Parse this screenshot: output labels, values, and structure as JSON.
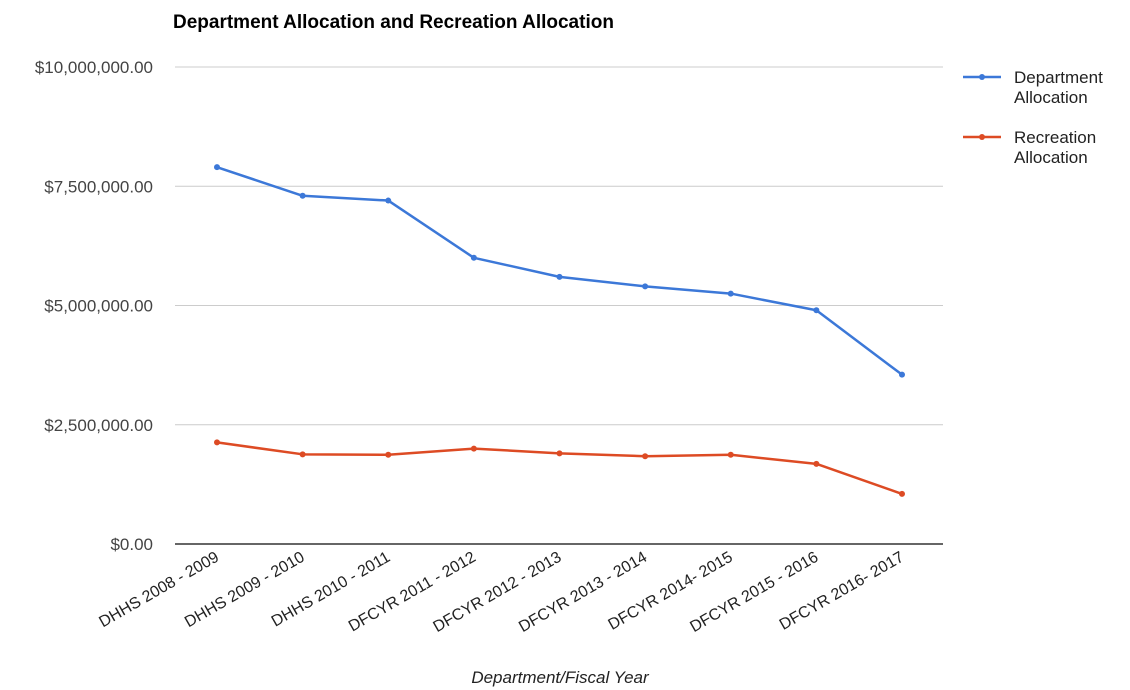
{
  "chart_data": {
    "type": "line",
    "title": "Department Allocation and Recreation Allocation",
    "xlabel": "Department/Fiscal Year",
    "ylabel": "",
    "ylim": [
      0,
      10000000
    ],
    "yticks": [
      "$0.00",
      "$2,500,000.00",
      "$5,000,000.00",
      "$7,500,000.00",
      "$10,000,000.00"
    ],
    "ytick_values": [
      0,
      2500000,
      5000000,
      7500000,
      10000000
    ],
    "grid": true,
    "legend_position": "right",
    "categories": [
      "DHHS 2008 - 2009",
      "DHHS 2009 - 2010",
      "DHHS 2010 - 2011",
      "DFCYR 2011 - 2012",
      "DFCYR 2012 - 2013",
      "DFCYR 2013 - 2014",
      "DFCYR 2014- 2015",
      "DFCYR 2015 - 2016",
      "DFCYR 2016- 2017"
    ],
    "series": [
      {
        "name": "Department Allocation",
        "legend_lines": [
          "Department",
          "Allocation"
        ],
        "color": "#3c78d8",
        "values": [
          7900000,
          7300000,
          7200000,
          6000000,
          5600000,
          5400000,
          5250000,
          4900000,
          3550000
        ]
      },
      {
        "name": "Recreation Allocation",
        "legend_lines": [
          "Recreation",
          "Allocation"
        ],
        "color": "#dd4b24",
        "values": [
          2130000,
          1880000,
          1870000,
          2000000,
          1900000,
          1840000,
          1870000,
          1680000,
          1050000
        ]
      }
    ]
  }
}
